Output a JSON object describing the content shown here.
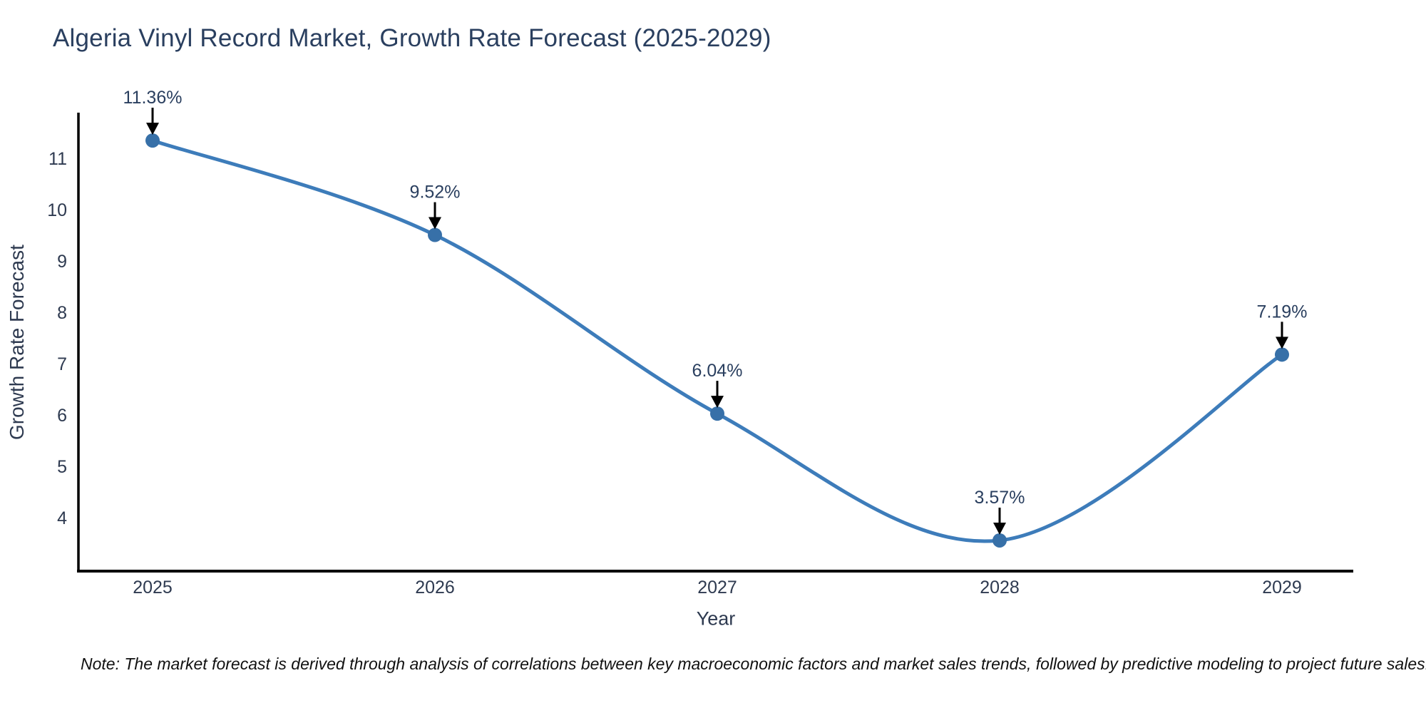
{
  "chart_data": {
    "type": "line",
    "title": "Algeria Vinyl Record Market, Growth Rate Forecast (2025-2029)",
    "xlabel": "Year",
    "ylabel": "Growth Rate Forecast",
    "categories": [
      "2025",
      "2026",
      "2027",
      "2028",
      "2029"
    ],
    "values": [
      11.36,
      9.52,
      6.04,
      3.57,
      7.19
    ],
    "point_labels": [
      "11.36%",
      "9.52%",
      "6.04%",
      "3.57%",
      "7.19%"
    ],
    "yticks": [
      4,
      5,
      6,
      7,
      8,
      9,
      10,
      11
    ],
    "ylim": [
      2.95,
      11.9
    ],
    "grid": "off",
    "legend": "none",
    "line_shape": "spline",
    "annotation_style": "label-with-down-arrow",
    "colors": {
      "line": "#3d7cba",
      "marker": "#3770a8",
      "axis": "#000000",
      "tick_text": "#2e3a50",
      "title_text": "#2a3f5f",
      "annotation_text": "#2a3f5f",
      "arrow": "#000000"
    }
  },
  "footnote": {
    "text": "Note: The market forecast is derived through analysis of correlations between key macroeconomic factors and market sales trends, followed by predictive modeling to project future sales."
  }
}
